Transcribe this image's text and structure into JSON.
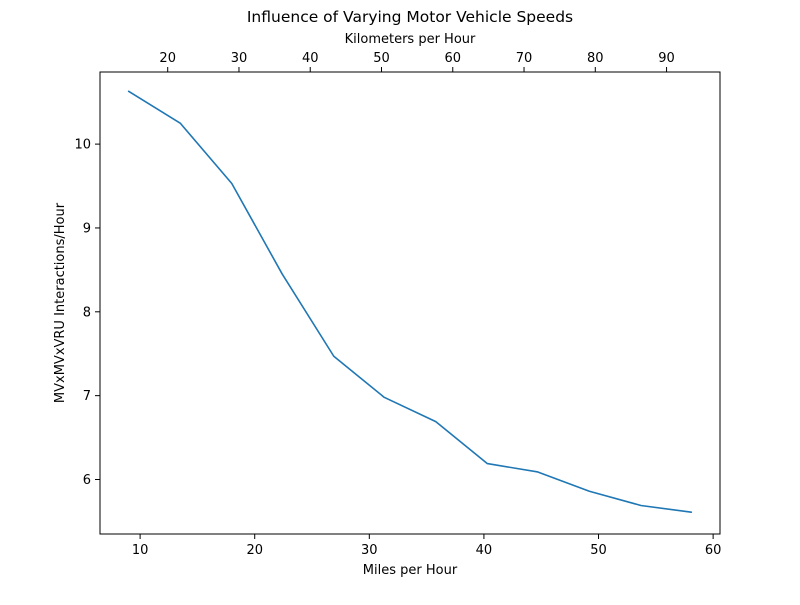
{
  "chart_data": {
    "type": "line",
    "title": "Influence of Varying Motor Vehicle Speeds",
    "xlabel": "Miles per Hour",
    "ylabel": "MVxMVxVRU Interactions/Hour",
    "secondary_xlabel": "Kilometers per Hour",
    "xlim": [
      6.5,
      60.6
    ],
    "ylim": [
      5.35,
      10.86
    ],
    "secondary_xlim": [
      10.5,
      97.5
    ],
    "x_ticks": [
      10,
      20,
      30,
      40,
      50,
      60
    ],
    "y_ticks": [
      6,
      7,
      8,
      9,
      10
    ],
    "secondary_x_ticks": [
      20,
      30,
      40,
      50,
      60,
      70,
      80,
      90
    ],
    "grid": false,
    "series": [
      {
        "name": "MVxMVxVRU Interactions/Hour",
        "color": "#1f77b4",
        "x": [
          9.0,
          13.5,
          18.0,
          22.4,
          26.9,
          31.3,
          35.8,
          40.3,
          44.7,
          49.2,
          53.7,
          58.1
        ],
        "y": [
          10.63,
          10.25,
          9.53,
          8.45,
          7.47,
          6.98,
          6.69,
          6.19,
          6.09,
          5.86,
          5.69,
          5.61
        ]
      }
    ]
  }
}
